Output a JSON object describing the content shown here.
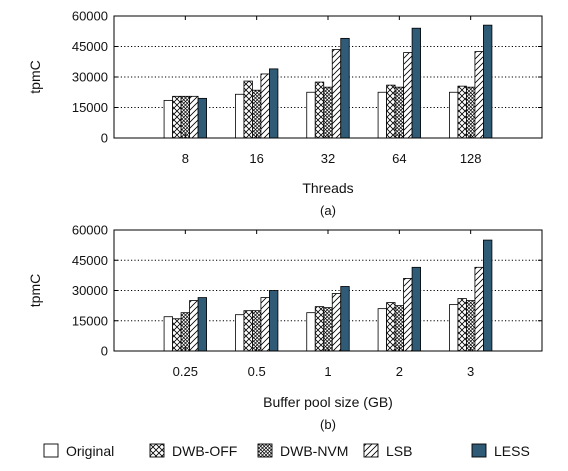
{
  "chart_data": [
    {
      "type": "bar",
      "caption": "(a)",
      "xlabel": "Threads",
      "ylabel": "tpmC",
      "ylim": [
        0,
        60000
      ],
      "yticks": [
        "0",
        "15000",
        "30000",
        "45000",
        "60000"
      ],
      "grid": "horizontal-dotted",
      "categories": [
        "8",
        "16",
        "32",
        "64",
        "128"
      ],
      "series": [
        {
          "name": "Original",
          "values": [
            18500,
            21500,
            22500,
            22500,
            22500
          ]
        },
        {
          "name": "DWB-OFF",
          "values": [
            20500,
            28000,
            27500,
            26000,
            25500
          ]
        },
        {
          "name": "DWB-NVM",
          "values": [
            20500,
            23500,
            25000,
            25000,
            25000
          ]
        },
        {
          "name": "LSB",
          "values": [
            20500,
            31500,
            43500,
            42000,
            42500
          ]
        },
        {
          "name": "LESS",
          "values": [
            19500,
            34000,
            49000,
            54000,
            55500
          ]
        }
      ]
    },
    {
      "type": "bar",
      "caption": "(b)",
      "xlabel": "Buffer pool size (GB)",
      "ylabel": "tpmC",
      "ylim": [
        0,
        60000
      ],
      "yticks": [
        "0",
        "15000",
        "30000",
        "45000",
        "60000"
      ],
      "grid": "horizontal-dotted",
      "categories": [
        "0.25",
        "0.5",
        "1",
        "2",
        "3"
      ],
      "series": [
        {
          "name": "Original",
          "values": [
            17000,
            18000,
            19000,
            21000,
            23000
          ]
        },
        {
          "name": "DWB-OFF",
          "values": [
            16000,
            20000,
            22000,
            24000,
            26000
          ]
        },
        {
          "name": "DWB-NVM",
          "values": [
            19000,
            20000,
            21500,
            22500,
            25000
          ]
        },
        {
          "name": "LSB",
          "values": [
            25000,
            26500,
            28500,
            36000,
            41500
          ]
        },
        {
          "name": "LESS",
          "values": [
            26500,
            30000,
            32000,
            41500,
            55000
          ]
        }
      ]
    }
  ],
  "legend": {
    "placement": "bottom",
    "items": [
      {
        "label": "Original",
        "pattern": "plain",
        "color": "#ffffff"
      },
      {
        "label": "DWB-OFF",
        "pattern": "cross-hatch",
        "color": "#ffffff"
      },
      {
        "label": "DWB-NVM",
        "pattern": "dense-cross-hatch",
        "color": "#ffffff"
      },
      {
        "label": "LSB",
        "pattern": "diagonal",
        "color": "#ffffff"
      },
      {
        "label": "LESS",
        "pattern": "solid",
        "color": "#2f5b76"
      }
    ]
  },
  "colors": {
    "less_fill": "#2f5b76",
    "stroke": "#000000"
  }
}
